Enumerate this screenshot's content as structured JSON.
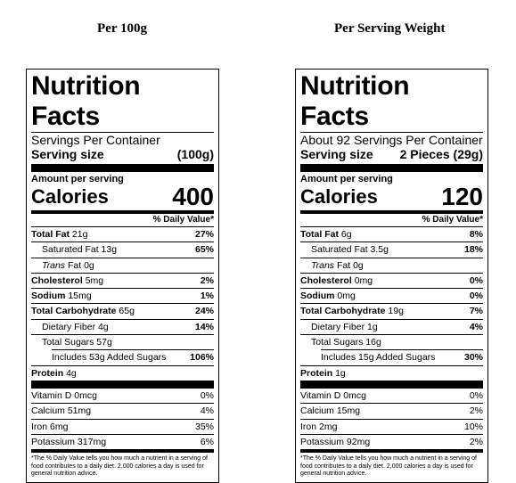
{
  "left": {
    "header": "Per 100g",
    "title": "Nutrition Facts",
    "servings_line": "Servings Per Container",
    "serving_size_label": "Serving size",
    "serving_size_value": "(100g)",
    "amount_per_serving": "Amount per serving",
    "calories_label": "Calories",
    "calories_value": "400",
    "dv_header": "% Daily Value*",
    "nutrients": [
      {
        "label": "Total Fat",
        "amount": "21g",
        "dv": "27%"
      },
      {
        "label": "Saturated Fat",
        "amount": "13g",
        "dv": "65%"
      },
      {
        "label": "Trans",
        "amount": "Fat 0g",
        "dv": ""
      },
      {
        "label": "Cholesterol",
        "amount": "5mg",
        "dv": "2%"
      },
      {
        "label": "Sodium",
        "amount": "15mg",
        "dv": "1%"
      },
      {
        "label": "Total Carbohydrate",
        "amount": "65g",
        "dv": "24%"
      },
      {
        "label": "Dietary Fiber",
        "amount": "4g",
        "dv": "14%"
      },
      {
        "label": "Total Sugars",
        "amount": "57g",
        "dv": ""
      },
      {
        "label": "Includes 53g Added Sugars",
        "amount": "",
        "dv": "106%"
      },
      {
        "label": "Protein",
        "amount": "4g",
        "dv": ""
      }
    ],
    "vitamins": [
      {
        "label": "Vitamin D 0mcg",
        "dv": "0%"
      },
      {
        "label": "Calcium 51mg",
        "dv": "4%"
      },
      {
        "label": "Iron 6mg",
        "dv": "35%"
      },
      {
        "label": "Potassium 317mg",
        "dv": "6%"
      }
    ],
    "footnote": "*The % Daily Value tells you how much a nutrient in a serving of food contributes to a daily diet. 2,000 calories a day is used for general nutrition advice."
  },
  "right": {
    "header": "Per Serving Weight",
    "title": "Nutrition Facts",
    "servings_line": "About 92 Servings Per Container",
    "serving_size_label": "Serving size",
    "serving_size_value": "2 Pieces (29g)",
    "amount_per_serving": "Amount per serving",
    "calories_label": "Calories",
    "calories_value": "120",
    "dv_header": "% Daily Value*",
    "nutrients": [
      {
        "label": "Total Fat",
        "amount": "6g",
        "dv": "8%"
      },
      {
        "label": "Saturated Fat",
        "amount": "3.5g",
        "dv": "18%"
      },
      {
        "label": "Trans",
        "amount": "Fat 0g",
        "dv": ""
      },
      {
        "label": "Cholesterol",
        "amount": "0mg",
        "dv": "0%"
      },
      {
        "label": "Sodium",
        "amount": "0mg",
        "dv": "0%"
      },
      {
        "label": "Total Carbohydrate",
        "amount": "19g",
        "dv": "7%"
      },
      {
        "label": "Dietary Fiber",
        "amount": "1g",
        "dv": "4%"
      },
      {
        "label": "Total Sugars",
        "amount": "16g",
        "dv": ""
      },
      {
        "label": "Includes 15g Added Sugars",
        "amount": "",
        "dv": "30%"
      },
      {
        "label": "Protein",
        "amount": "1g",
        "dv": ""
      }
    ],
    "vitamins": [
      {
        "label": "Vitamin D 0mcg",
        "dv": "0%"
      },
      {
        "label": "Calcium 15mg",
        "dv": "2%"
      },
      {
        "label": "Iron 2mg",
        "dv": "10%"
      },
      {
        "label": "Potassium 92mg",
        "dv": "2%"
      }
    ],
    "footnote": "*The % Daily Value tells you how much a nutrient in a serving of food contributes to a daily diet. 2,000 calories a day is used for general nutrition advice."
  }
}
